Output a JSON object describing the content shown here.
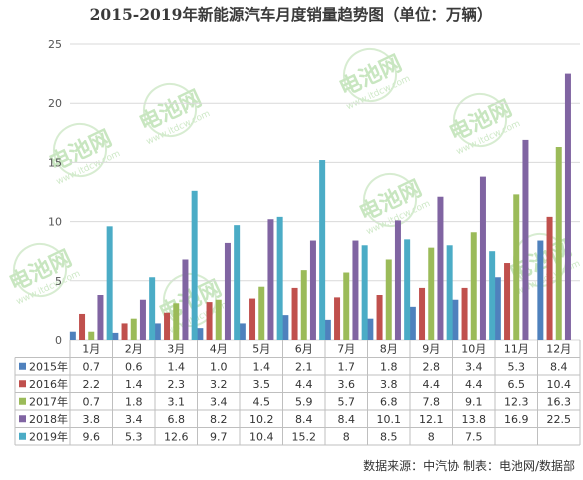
{
  "chart_data": {
    "type": "bar",
    "title": "2015-2019年新能源汽车月度销量趋势图（单位：万辆）",
    "categories": [
      "1月",
      "2月",
      "3月",
      "4月",
      "5月",
      "6月",
      "7月",
      "8月",
      "9月",
      "10月",
      "11月",
      "12月"
    ],
    "series": [
      {
        "name": "2015年",
        "color": "#4f81bd",
        "values": [
          0.7,
          0.6,
          1.4,
          1.0,
          1.4,
          2.1,
          1.7,
          1.8,
          2.8,
          3.4,
          5.3,
          8.4
        ]
      },
      {
        "name": "2016年",
        "color": "#c0504d",
        "values": [
          2.2,
          1.4,
          2.3,
          3.2,
          3.5,
          4.4,
          3.6,
          3.8,
          4.4,
          4.4,
          6.5,
          10.4
        ]
      },
      {
        "name": "2017年",
        "color": "#9bbb59",
        "values": [
          0.7,
          1.8,
          3.1,
          3.4,
          4.5,
          5.9,
          5.7,
          6.8,
          7.8,
          9.1,
          12.3,
          16.3
        ]
      },
      {
        "name": "2018年",
        "color": "#8064a2",
        "values": [
          3.8,
          3.4,
          6.8,
          8.2,
          10.2,
          8.4,
          8.4,
          10.1,
          12.1,
          13.8,
          16.9,
          22.5
        ]
      },
      {
        "name": "2019年",
        "color": "#4bacc6",
        "values": [
          9.6,
          5.3,
          12.6,
          9.7,
          10.4,
          15.2,
          8,
          8.5,
          8,
          7.5,
          null,
          null
        ]
      }
    ],
    "table_text": [
      [
        "0.7",
        "0.6",
        "1.4",
        "1.0",
        "1.4",
        "2.1",
        "1.7",
        "1.8",
        "2.8",
        "3.4",
        "5.3",
        "8.4"
      ],
      [
        "2.2",
        "1.4",
        "2.3",
        "3.2",
        "3.5",
        "4.4",
        "3.6",
        "3.8",
        "4.4",
        "4.4",
        "6.5",
        "10.4"
      ],
      [
        "0.7",
        "1.8",
        "3.1",
        "3.4",
        "4.5",
        "5.9",
        "5.7",
        "6.8",
        "7.8",
        "9.1",
        "12.3",
        "16.3"
      ],
      [
        "3.8",
        "3.4",
        "6.8",
        "8.2",
        "10.2",
        "8.4",
        "8.4",
        "10.1",
        "12.1",
        "13.8",
        "16.9",
        "22.5"
      ],
      [
        "9.6",
        "5.3",
        "12.6",
        "9.7",
        "10.4",
        "15.2",
        "8",
        "8.5",
        "8",
        "7.5",
        "",
        ""
      ]
    ],
    "ylim": [
      0,
      25
    ],
    "yticks": [
      "0",
      "5",
      "10",
      "15",
      "20",
      "25"
    ],
    "grid": true,
    "legend": "data-table-below"
  },
  "source": "数据来源：中汽协  制表：电池网/数据部",
  "watermark": {
    "text": "电池网",
    "sub": "www.itdcw.com"
  }
}
